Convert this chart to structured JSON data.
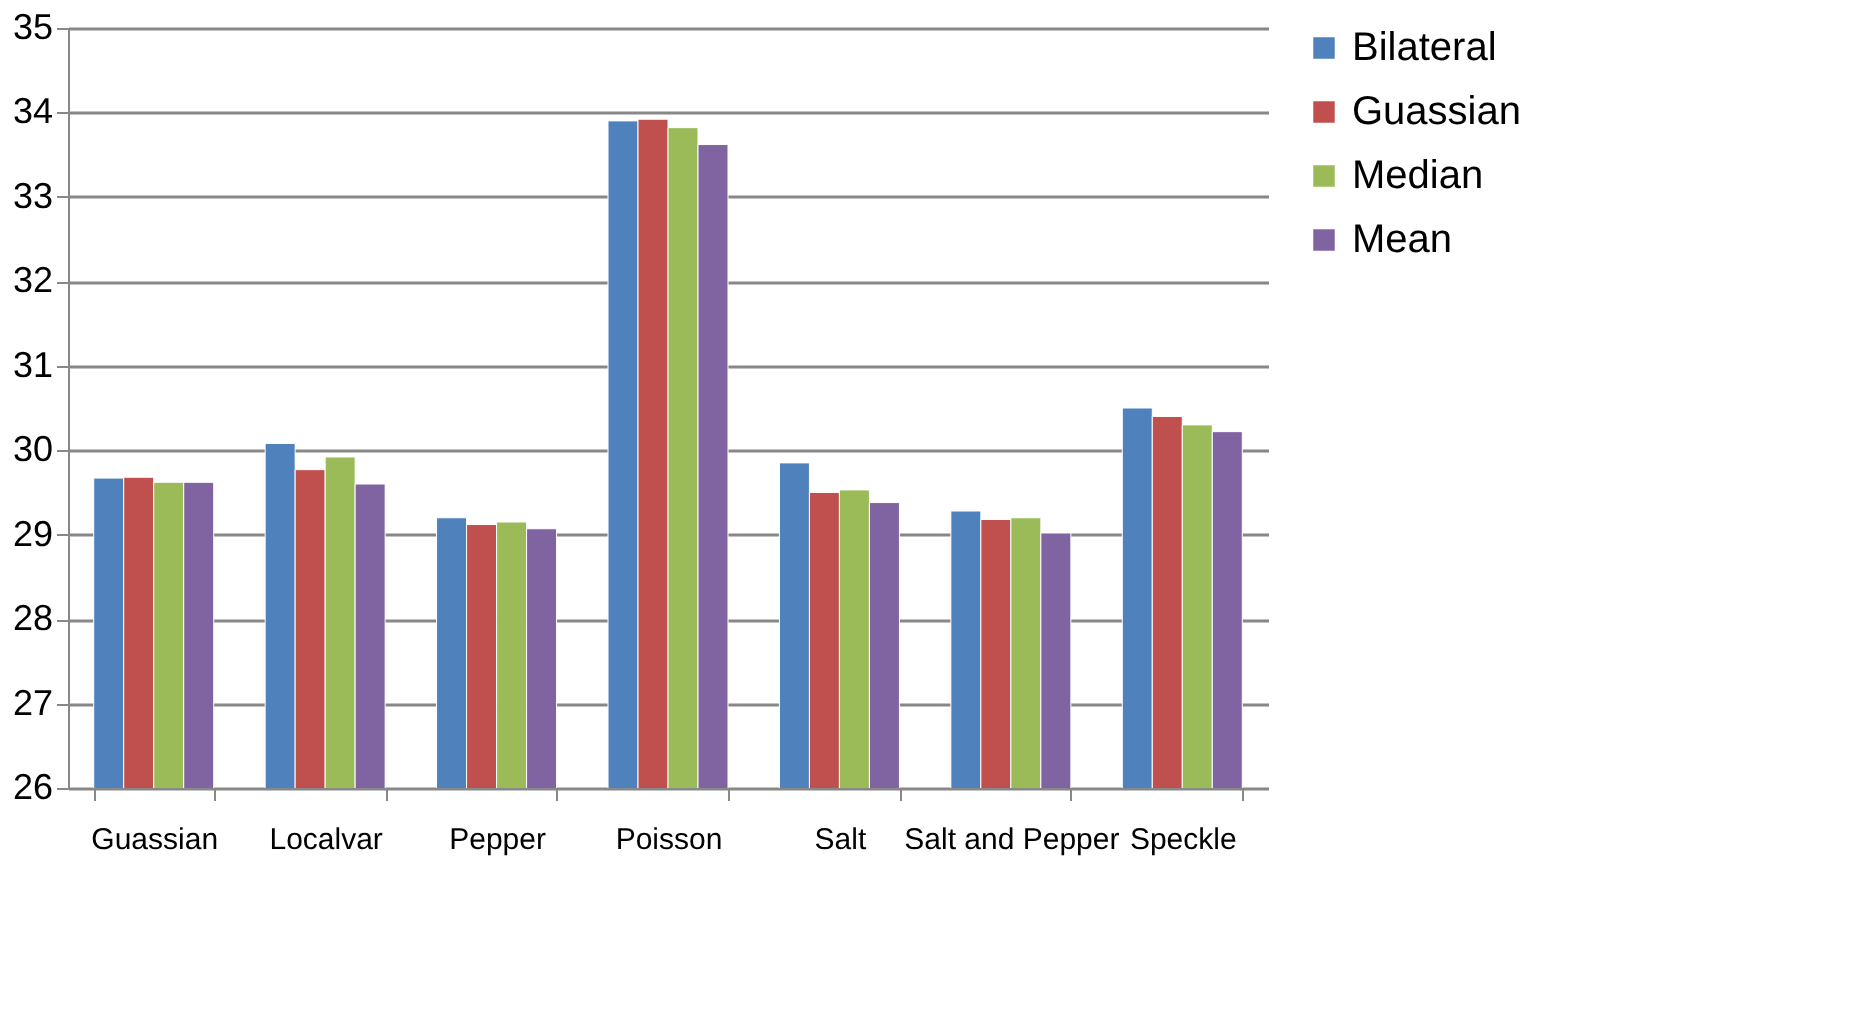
{
  "chart_data": {
    "type": "bar",
    "categories": [
      "Guassian",
      "Localvar",
      "Pepper",
      "Poisson",
      "Salt",
      "Salt and Pepper",
      "Speckle"
    ],
    "series": [
      {
        "name": "Bilateral",
        "color": "#4f81bd",
        "values": [
          29.67,
          30.08,
          29.2,
          33.9,
          29.85,
          29.28,
          30.5
        ]
      },
      {
        "name": "Guassian",
        "color": "#c0504d",
        "values": [
          29.68,
          29.77,
          29.12,
          33.92,
          29.5,
          29.18,
          30.4
        ]
      },
      {
        "name": "Median",
        "color": "#9bbb59",
        "values": [
          29.62,
          29.92,
          29.15,
          33.82,
          29.53,
          29.2,
          30.3
        ]
      },
      {
        "name": "Mean",
        "color": "#8064a2",
        "values": [
          29.62,
          29.6,
          29.07,
          33.62,
          29.38,
          29.02,
          30.22
        ]
      }
    ],
    "ylim": [
      26,
      35
    ],
    "yticks": [
      26,
      27,
      28,
      29,
      30,
      31,
      32,
      33,
      34,
      35
    ],
    "grid": "y",
    "legend": "right"
  }
}
